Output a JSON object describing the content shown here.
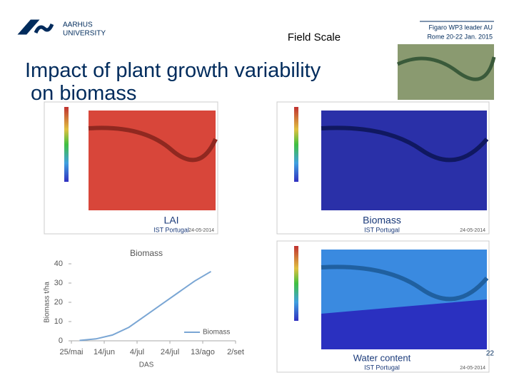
{
  "header": {
    "org_line1": "AARHUS",
    "org_line2": "UNIVERSITY",
    "section": "Field Scale",
    "event_line1": "Figaro WP3 leader AU",
    "event_line2": "Rome 20-22 Jan. 2015"
  },
  "title": "Impact of plant growth variability on biomass",
  "maps": [
    {
      "label": "LAI",
      "source": "IST Portugal",
      "date": "24-05-2014"
    },
    {
      "label": "Biomass",
      "source": "IST Portugal",
      "date": "24-05-2014"
    },
    {
      "label": "Water content",
      "source": "IST Portugal",
      "date": "24-05-2014"
    }
  ],
  "biomass_chart": {
    "type": "line",
    "title": "Biomass",
    "x_label": "DAS",
    "y_label": "Biomass t/ha",
    "x": [
      5,
      15,
      25,
      35,
      45,
      55,
      65,
      75,
      85
    ],
    "series": [
      {
        "name": "Biomass",
        "color": "#7aa6d4",
        "values": [
          0.2,
          1,
          3,
          7,
          13,
          19,
          25,
          31,
          36
        ]
      }
    ],
    "xlim": [
      0,
      100
    ],
    "xticks": [
      {
        "value": 0,
        "label": "25/mai"
      },
      {
        "value": 20,
        "label": "14/jun"
      },
      {
        "value": 40,
        "label": "4/jul"
      },
      {
        "value": 60,
        "label": "24/jul"
      },
      {
        "value": 80,
        "label": "13/ago"
      },
      {
        "value": 100,
        "label": "2/set"
      }
    ],
    "ylim": [
      0,
      40
    ],
    "yticks": [
      0,
      10,
      20,
      30,
      40
    ]
  },
  "page_number": "22"
}
